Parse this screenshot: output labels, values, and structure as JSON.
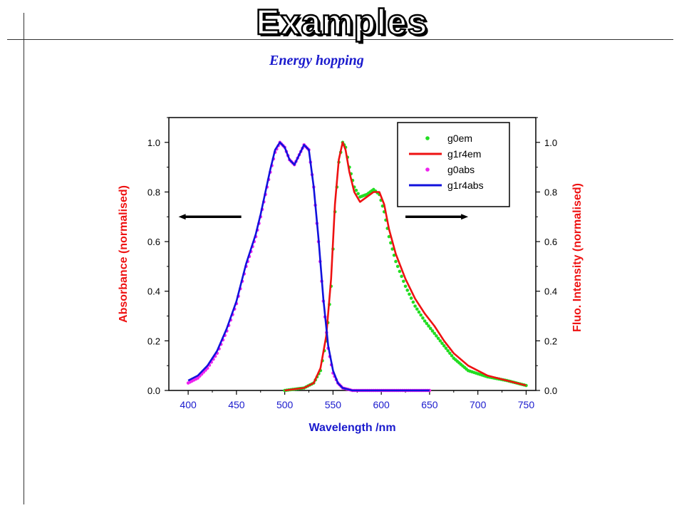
{
  "slide": {
    "title": "Examples",
    "subtitle": "Energy hopping"
  },
  "chart_data": {
    "type": "scatter",
    "xlabel": "Wavelength /nm",
    "ylabel_left": "Absorbance (normalised)",
    "ylabel_right": "Fluo. Intensity (normalised)",
    "xlim": [
      380,
      760
    ],
    "ylim": [
      0,
      1.1
    ],
    "x_ticks": [
      "400",
      "450",
      "500",
      "550",
      "600",
      "650",
      "700",
      "750"
    ],
    "y_ticks_left": [
      "0.0",
      "0.2",
      "0.4",
      "0.6",
      "0.8",
      "1.0"
    ],
    "y_ticks_right": [
      "0.0",
      "0.2",
      "0.4",
      "0.6",
      "0.8",
      "1.0"
    ],
    "legend_position": "top-right",
    "series": [
      {
        "name": "g0em",
        "style": "dots",
        "color": "#22dd22",
        "x": [
          500,
          520,
          530,
          537,
          543,
          548,
          552,
          556,
          560,
          563,
          567,
          572,
          578,
          585,
          592,
          598,
          603,
          608,
          615,
          625,
          635,
          645,
          655,
          665,
          675,
          690,
          710,
          730,
          750
        ],
        "y": [
          0.0,
          0.01,
          0.03,
          0.08,
          0.2,
          0.42,
          0.72,
          0.92,
          1.0,
          0.98,
          0.9,
          0.82,
          0.78,
          0.79,
          0.81,
          0.79,
          0.72,
          0.62,
          0.52,
          0.42,
          0.34,
          0.28,
          0.23,
          0.18,
          0.13,
          0.08,
          0.055,
          0.04,
          0.02
        ]
      },
      {
        "name": "g1r4em",
        "style": "line",
        "color": "#ee1111",
        "x": [
          500,
          520,
          530,
          537,
          543,
          548,
          552,
          556,
          560,
          563,
          567,
          572,
          578,
          585,
          592,
          598,
          603,
          608,
          615,
          625,
          635,
          645,
          655,
          665,
          675,
          690,
          710,
          730,
          750
        ],
        "y": [
          0.0,
          0.01,
          0.03,
          0.09,
          0.22,
          0.45,
          0.75,
          0.93,
          1.0,
          0.97,
          0.88,
          0.8,
          0.76,
          0.78,
          0.8,
          0.8,
          0.75,
          0.65,
          0.55,
          0.45,
          0.37,
          0.31,
          0.26,
          0.2,
          0.15,
          0.1,
          0.06,
          0.04,
          0.02
        ]
      },
      {
        "name": "g0abs",
        "style": "dots",
        "color": "#ee22ee",
        "x": [
          400,
          410,
          420,
          430,
          440,
          450,
          460,
          465,
          470,
          475,
          480,
          485,
          490,
          495,
          500,
          505,
          510,
          515,
          520,
          525,
          530,
          535,
          540,
          545,
          550,
          555,
          560,
          570,
          580,
          600,
          650
        ],
        "y": [
          0.03,
          0.05,
          0.09,
          0.15,
          0.24,
          0.35,
          0.5,
          0.56,
          0.62,
          0.7,
          0.79,
          0.88,
          0.96,
          1.0,
          0.98,
          0.93,
          0.91,
          0.95,
          0.99,
          0.97,
          0.82,
          0.6,
          0.36,
          0.17,
          0.07,
          0.03,
          0.01,
          0.0,
          0.0,
          0.0,
          0.0
        ]
      },
      {
        "name": "g1r4abs",
        "style": "line",
        "color": "#1111dd",
        "x": [
          400,
          410,
          420,
          430,
          440,
          450,
          460,
          465,
          470,
          475,
          480,
          485,
          490,
          495,
          500,
          505,
          510,
          515,
          520,
          525,
          530,
          535,
          540,
          545,
          550,
          555,
          560,
          570,
          580,
          600,
          650
        ],
        "y": [
          0.04,
          0.06,
          0.1,
          0.16,
          0.25,
          0.36,
          0.51,
          0.57,
          0.63,
          0.71,
          0.8,
          0.89,
          0.97,
          1.0,
          0.98,
          0.93,
          0.91,
          0.95,
          0.99,
          0.97,
          0.82,
          0.61,
          0.37,
          0.18,
          0.08,
          0.03,
          0.01,
          0.0,
          0.0,
          0.0,
          0.0
        ]
      }
    ],
    "annotations": [
      {
        "type": "arrow",
        "direction": "left",
        "from_x": 455,
        "to_x": 390,
        "y": 0.7
      },
      {
        "type": "arrow",
        "direction": "right",
        "from_x": 625,
        "to_x": 690,
        "y": 0.7
      }
    ]
  }
}
